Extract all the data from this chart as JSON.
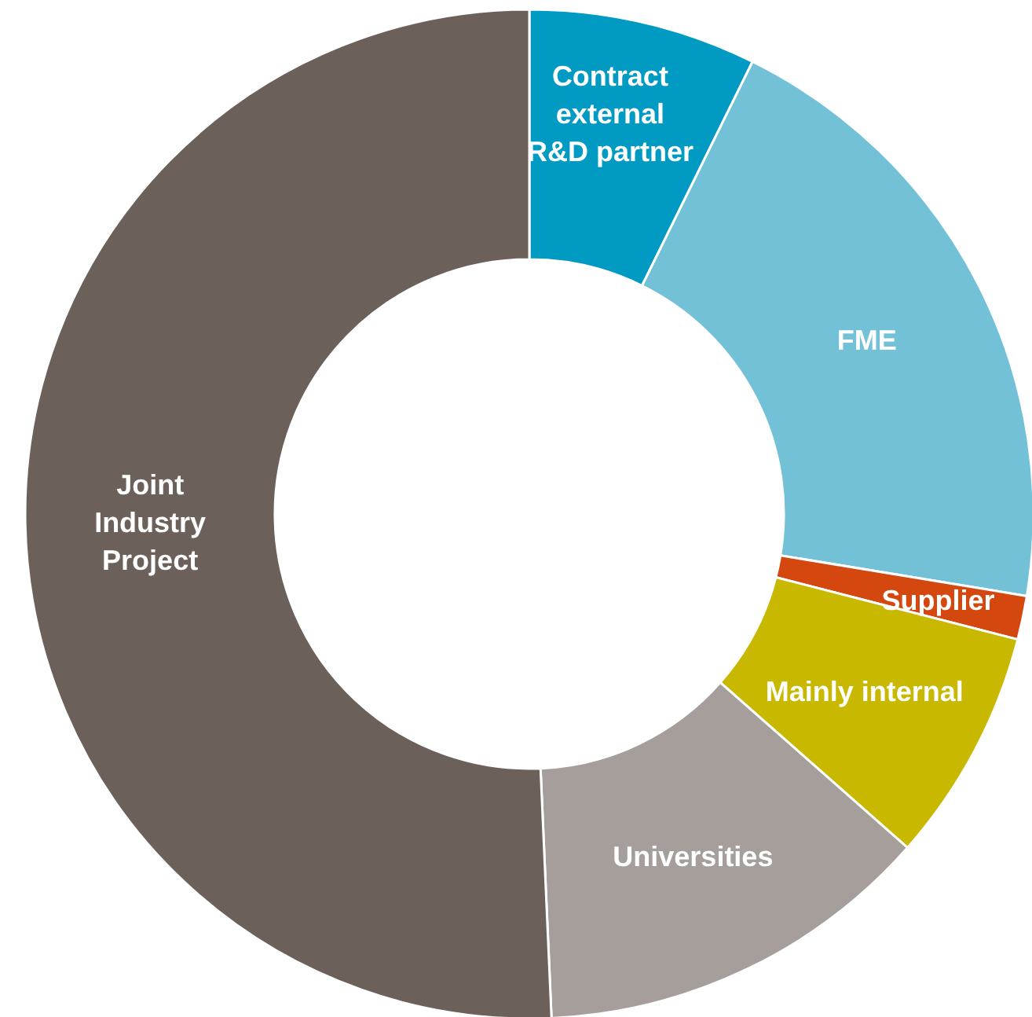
{
  "chart_data": {
    "type": "donut",
    "categories": [
      "Contract external R&D partner",
      "FME",
      "Supplier",
      "Mainly internal",
      "Universities",
      "Joint Industry Project"
    ],
    "values": [
      7.3,
      20.3,
      1.4,
      7.5,
      12.8,
      50.7
    ],
    "colors": [
      "#009ac3",
      "#72c1d7",
      "#d4470f",
      "#c9b800",
      "#a59e9a",
      "#6b605a"
    ]
  }
}
